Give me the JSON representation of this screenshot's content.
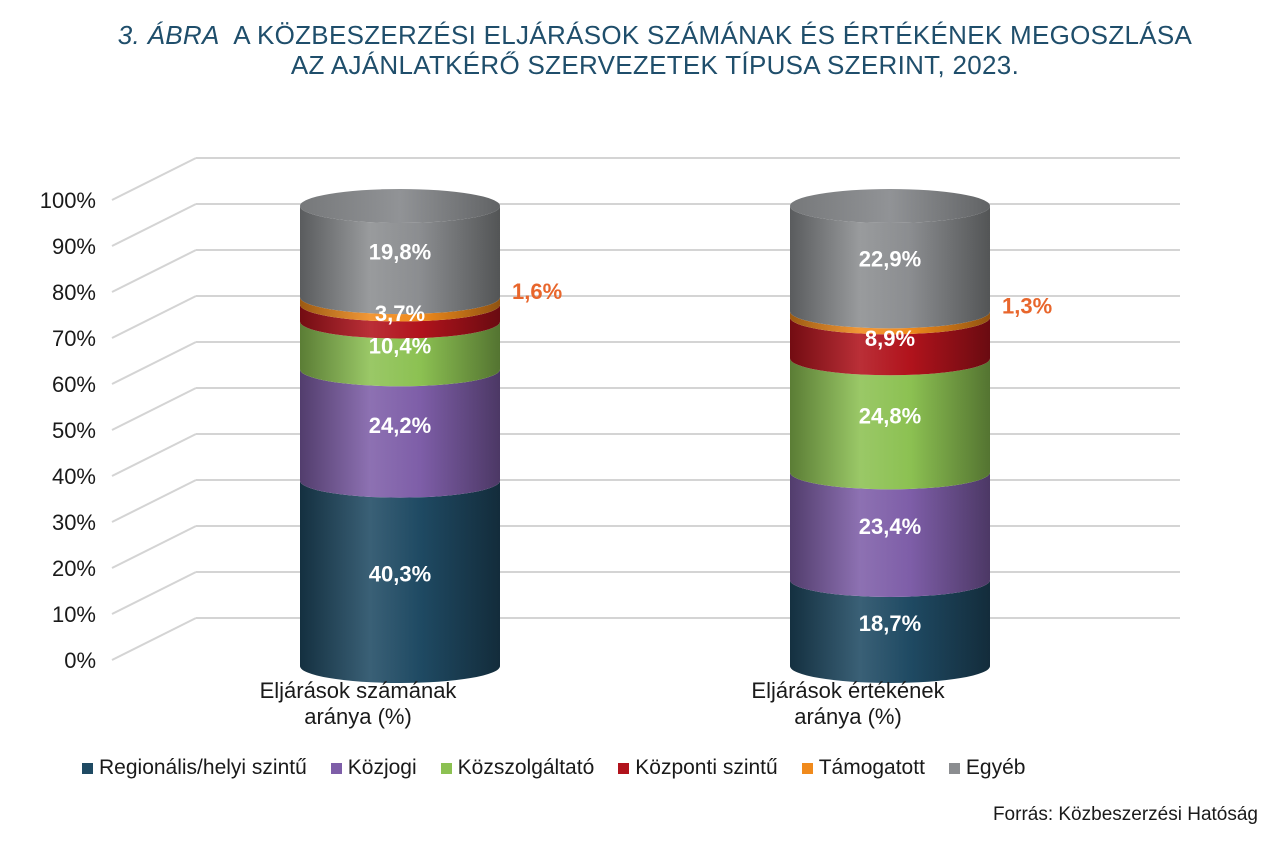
{
  "header": {
    "title_label": "3. ÁBRA",
    "title_line1": "A KÖZBESZERZÉSI ELJÁRÁSOK SZÁMÁNAK ÉS ÉRTÉKÉNEK MEGOSZLÁSA",
    "title_line2": "AZ AJÁNLATKÉRŐ SZERVEZETEK TÍPUSA SZERINT, 2023."
  },
  "source": "Forrás: Közbeszerzési Hatóság",
  "chart_data": {
    "type": "bar",
    "stacked": true,
    "style": "3d-cylinder",
    "ylim": [
      0,
      100
    ],
    "y_ticks": [
      "0%",
      "10%",
      "20%",
      "30%",
      "40%",
      "50%",
      "60%",
      "70%",
      "80%",
      "90%",
      "100%"
    ],
    "grid": true,
    "legend_position": "bottom",
    "categories": [
      [
        "Eljárások számának",
        "aránya (%)"
      ],
      [
        "Eljárások értékének",
        "aránya (%)"
      ]
    ],
    "series": [
      {
        "name": "Regionális/helyi szintű",
        "color": "#1f4a63",
        "values": [
          40.3,
          18.7
        ],
        "labels": [
          "40,3%",
          "18,7%"
        ]
      },
      {
        "name": "Közjogi",
        "color": "#7e5ea8",
        "values": [
          24.2,
          23.4
        ],
        "labels": [
          "24,2%",
          "23,4%"
        ]
      },
      {
        "name": "Közszolgáltató",
        "color": "#8cc152",
        "values": [
          10.4,
          24.8
        ],
        "labels": [
          "10,4%",
          "24,8%"
        ]
      },
      {
        "name": "Központi szintű",
        "color": "#b1131c",
        "values": [
          3.7,
          8.9
        ],
        "labels": [
          "3,7%",
          "8,9%"
        ]
      },
      {
        "name": "Támogatott",
        "color": "#f08a1c",
        "values": [
          1.6,
          1.3
        ],
        "labels": [
          "1,6%",
          "1,3%"
        ],
        "label_color": "#e8662c",
        "label_outside": true
      },
      {
        "name": "Egyéb",
        "color": "#8b8d90",
        "values": [
          19.8,
          22.9
        ],
        "labels": [
          "19,8%",
          "22,9%"
        ]
      }
    ]
  }
}
